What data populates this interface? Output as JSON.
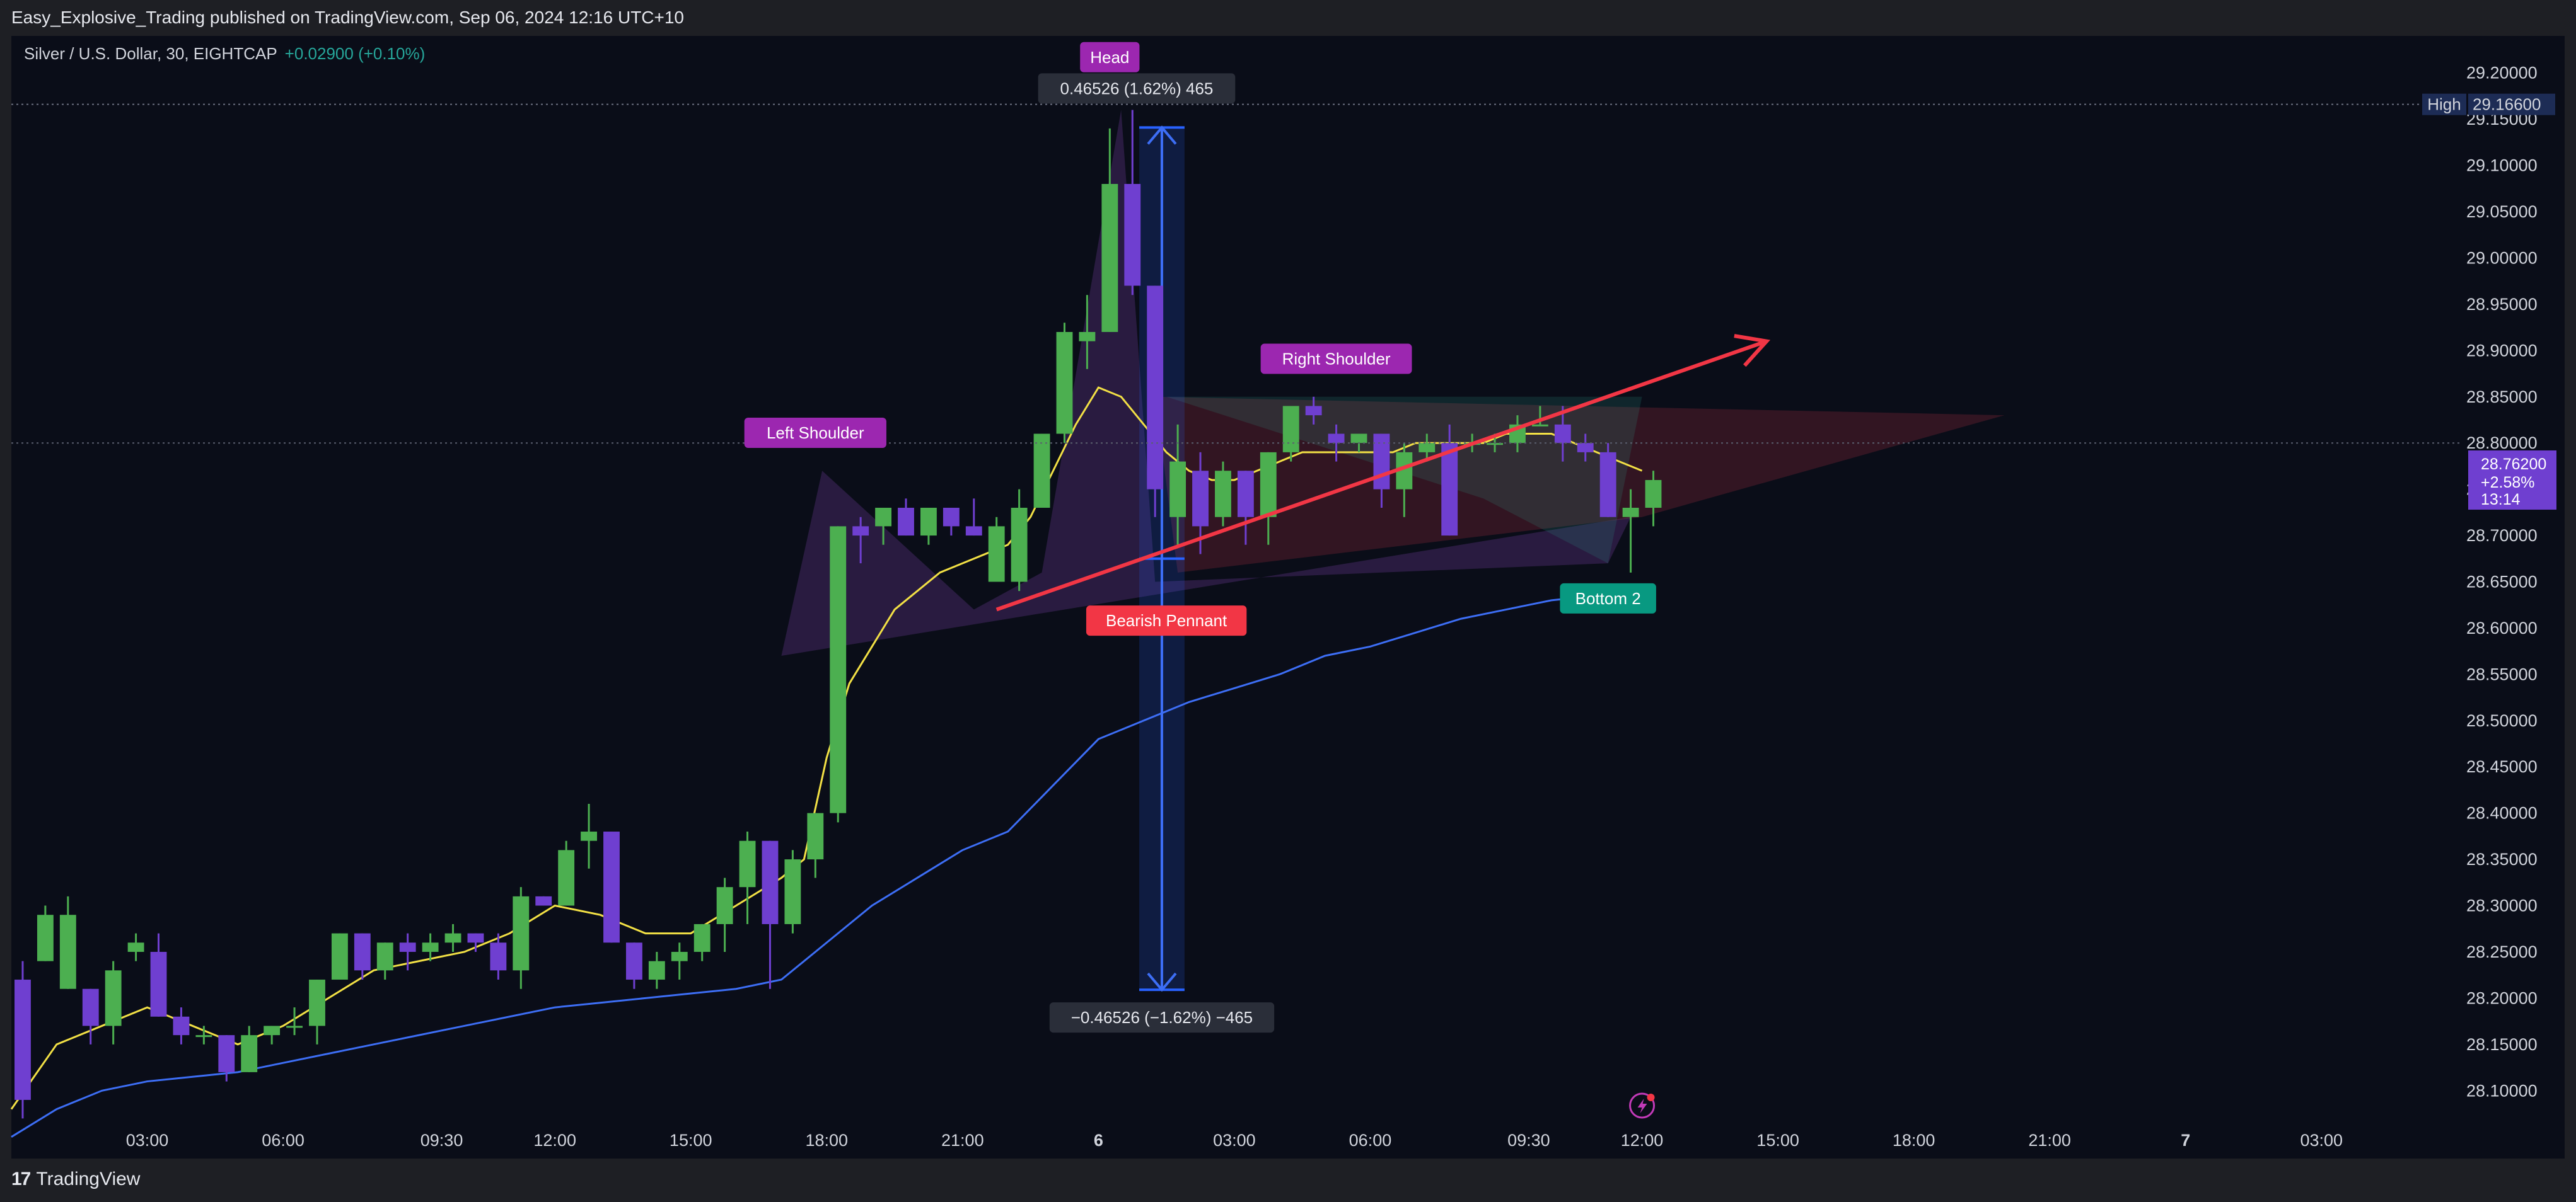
{
  "header": {
    "published_line": "Easy_Explosive_Trading published on TradingView.com, Sep 06, 2024 12:16 UTC+10"
  },
  "footer": {
    "logo_mark": "17",
    "brand": "TradingView"
  },
  "symbol_bar": {
    "symbol": "Silver / U.S. Dollar, 30, EIGHTCAP",
    "change": "+0.02900 (+0.10%)"
  },
  "chart_data": {
    "type": "candlestick",
    "title": "Silver / U.S. Dollar, 30, EIGHTCAP",
    "ylim": [
      28.06,
      29.24
    ],
    "y_tick_labels": [
      "29.20000",
      "29.15000",
      "29.10000",
      "29.05000",
      "29.00000",
      "28.95000",
      "28.90000",
      "28.85000",
      "28.80000",
      "28.75000",
      "28.70000",
      "28.65000",
      "28.60000",
      "28.55000",
      "28.50000",
      "28.45000",
      "28.40000",
      "28.35000",
      "28.30000",
      "28.25000",
      "28.20000",
      "28.15000",
      "28.10000"
    ],
    "y_ticks": [
      29.2,
      29.15,
      29.1,
      29.05,
      29.0,
      28.95,
      28.9,
      28.85,
      28.8,
      28.75,
      28.7,
      28.65,
      28.6,
      28.55,
      28.5,
      28.45,
      28.4,
      28.35,
      28.3,
      28.25,
      28.2,
      28.15,
      28.1
    ],
    "x_ticks": [
      {
        "label": "03:00",
        "t": 6
      },
      {
        "label": "06:00",
        "t": 12
      },
      {
        "label": "09:30",
        "t": 19
      },
      {
        "label": "12:00",
        "t": 24
      },
      {
        "label": "15:00",
        "t": 30
      },
      {
        "label": "18:00",
        "t": 36
      },
      {
        "label": "21:00",
        "t": 42
      },
      {
        "label": "6",
        "t": 48
      },
      {
        "label": "03:00",
        "t": 54
      },
      {
        "label": "06:00",
        "t": 60
      },
      {
        "label": "09:30",
        "t": 67
      },
      {
        "label": "12:00",
        "t": 72
      },
      {
        "label": "15:00",
        "t": 78
      },
      {
        "label": "18:00",
        "t": 84
      },
      {
        "label": "21:00",
        "t": 90
      },
      {
        "label": "7",
        "t": 96
      },
      {
        "label": "03:00",
        "t": 102
      }
    ],
    "x_span": [
      0.0,
      108.2
    ],
    "candles": [
      {
        "t": 0,
        "o": 28.22,
        "h": 28.24,
        "l": 28.07,
        "c": 28.09
      },
      {
        "t": 1,
        "o": 28.24,
        "h": 28.3,
        "l": 28.24,
        "c": 28.29
      },
      {
        "t": 2,
        "o": 28.21,
        "h": 28.31,
        "l": 28.21,
        "c": 28.29
      },
      {
        "t": 3,
        "o": 28.21,
        "h": 28.21,
        "l": 28.15,
        "c": 28.17
      },
      {
        "t": 4,
        "o": 28.17,
        "h": 28.24,
        "l": 28.15,
        "c": 28.23
      },
      {
        "t": 5,
        "o": 28.25,
        "h": 28.27,
        "l": 28.24,
        "c": 28.26
      },
      {
        "t": 6,
        "o": 28.25,
        "h": 28.27,
        "l": 28.18,
        "c": 28.18
      },
      {
        "t": 7,
        "o": 28.18,
        "h": 28.19,
        "l": 28.15,
        "c": 28.16
      },
      {
        "t": 8,
        "o": 28.16,
        "h": 28.17,
        "l": 28.15,
        "c": 28.16
      },
      {
        "t": 9,
        "o": 28.16,
        "h": 28.16,
        "l": 28.11,
        "c": 28.12
      },
      {
        "t": 10,
        "o": 28.12,
        "h": 28.17,
        "l": 28.12,
        "c": 28.16
      },
      {
        "t": 11,
        "o": 28.16,
        "h": 28.17,
        "l": 28.15,
        "c": 28.17
      },
      {
        "t": 12,
        "o": 28.17,
        "h": 28.19,
        "l": 28.16,
        "c": 28.17
      },
      {
        "t": 13,
        "o": 28.17,
        "h": 28.22,
        "l": 28.15,
        "c": 28.22
      },
      {
        "t": 14,
        "o": 28.22,
        "h": 28.27,
        "l": 28.22,
        "c": 28.27
      },
      {
        "t": 15,
        "o": 28.27,
        "h": 28.27,
        "l": 28.22,
        "c": 28.23
      },
      {
        "t": 16,
        "o": 28.23,
        "h": 28.26,
        "l": 28.22,
        "c": 28.26
      },
      {
        "t": 17,
        "o": 28.26,
        "h": 28.27,
        "l": 28.23,
        "c": 28.25
      },
      {
        "t": 18,
        "o": 28.25,
        "h": 28.27,
        "l": 28.24,
        "c": 28.26
      },
      {
        "t": 19,
        "o": 28.26,
        "h": 28.28,
        "l": 28.25,
        "c": 28.27
      },
      {
        "t": 20,
        "o": 28.27,
        "h": 28.27,
        "l": 28.25,
        "c": 28.26
      },
      {
        "t": 21,
        "o": 28.26,
        "h": 28.27,
        "l": 28.22,
        "c": 28.23
      },
      {
        "t": 22,
        "o": 28.23,
        "h": 28.32,
        "l": 28.21,
        "c": 28.31
      },
      {
        "t": 23,
        "o": 28.31,
        "h": 28.31,
        "l": 28.3,
        "c": 28.3
      },
      {
        "t": 24,
        "o": 28.3,
        "h": 28.37,
        "l": 28.3,
        "c": 28.36
      },
      {
        "t": 25,
        "o": 28.37,
        "h": 28.41,
        "l": 28.34,
        "c": 28.38
      },
      {
        "t": 26,
        "o": 28.38,
        "h": 28.38,
        "l": 28.26,
        "c": 28.26
      },
      {
        "t": 27,
        "o": 28.26,
        "h": 28.26,
        "l": 28.21,
        "c": 28.22
      },
      {
        "t": 28,
        "o": 28.22,
        "h": 28.25,
        "l": 28.21,
        "c": 28.24
      },
      {
        "t": 29,
        "o": 28.24,
        "h": 28.26,
        "l": 28.22,
        "c": 28.25
      },
      {
        "t": 30,
        "o": 28.25,
        "h": 28.28,
        "l": 28.24,
        "c": 28.28
      },
      {
        "t": 31,
        "o": 28.28,
        "h": 28.33,
        "l": 28.25,
        "c": 28.32
      },
      {
        "t": 32,
        "o": 28.32,
        "h": 28.38,
        "l": 28.28,
        "c": 28.37
      },
      {
        "t": 33,
        "o": 28.37,
        "h": 28.37,
        "l": 28.21,
        "c": 28.28
      },
      {
        "t": 34,
        "o": 28.28,
        "h": 28.36,
        "l": 28.27,
        "c": 28.35
      },
      {
        "t": 35,
        "o": 28.35,
        "h": 28.4,
        "l": 28.33,
        "c": 28.4
      },
      {
        "t": 36,
        "o": 28.4,
        "h": 28.71,
        "l": 28.39,
        "c": 28.71
      },
      {
        "t": 37,
        "o": 28.71,
        "h": 28.72,
        "l": 28.67,
        "c": 28.7
      },
      {
        "t": 38,
        "o": 28.71,
        "h": 28.73,
        "l": 28.69,
        "c": 28.73
      },
      {
        "t": 39,
        "o": 28.73,
        "h": 28.74,
        "l": 28.7,
        "c": 28.7
      },
      {
        "t": 40,
        "o": 28.7,
        "h": 28.73,
        "l": 28.69,
        "c": 28.73
      },
      {
        "t": 41,
        "o": 28.73,
        "h": 28.73,
        "l": 28.7,
        "c": 28.71
      },
      {
        "t": 42,
        "o": 28.71,
        "h": 28.74,
        "l": 28.7,
        "c": 28.7
      },
      {
        "t": 43,
        "o": 28.65,
        "h": 28.72,
        "l": 28.65,
        "c": 28.71
      },
      {
        "t": 44,
        "o": 28.65,
        "h": 28.75,
        "l": 28.64,
        "c": 28.73
      },
      {
        "t": 45,
        "o": 28.73,
        "h": 28.81,
        "l": 28.73,
        "c": 28.81
      },
      {
        "t": 46,
        "o": 28.81,
        "h": 28.93,
        "l": 28.8,
        "c": 28.92
      },
      {
        "t": 47,
        "o": 28.91,
        "h": 28.96,
        "l": 28.88,
        "c": 28.92
      },
      {
        "t": 48,
        "o": 28.92,
        "h": 29.14,
        "l": 28.92,
        "c": 29.08
      },
      {
        "t": 49,
        "o": 29.08,
        "h": 29.16,
        "l": 28.96,
        "c": 28.97
      },
      {
        "t": 50,
        "o": 28.97,
        "h": 28.97,
        "l": 28.72,
        "c": 28.75
      },
      {
        "t": 51,
        "o": 28.72,
        "h": 28.82,
        "l": 28.69,
        "c": 28.78
      },
      {
        "t": 52,
        "o": 28.77,
        "h": 28.79,
        "l": 28.68,
        "c": 28.71
      },
      {
        "t": 53,
        "o": 28.72,
        "h": 28.78,
        "l": 28.71,
        "c": 28.77
      },
      {
        "t": 54,
        "o": 28.77,
        "h": 28.77,
        "l": 28.69,
        "c": 28.72
      },
      {
        "t": 55,
        "o": 28.72,
        "h": 28.79,
        "l": 28.69,
        "c": 28.79
      },
      {
        "t": 56,
        "o": 28.79,
        "h": 28.84,
        "l": 28.78,
        "c": 28.84
      },
      {
        "t": 57,
        "o": 28.84,
        "h": 28.85,
        "l": 28.82,
        "c": 28.83
      },
      {
        "t": 58,
        "o": 28.81,
        "h": 28.82,
        "l": 28.78,
        "c": 28.8
      },
      {
        "t": 59,
        "o": 28.8,
        "h": 28.81,
        "l": 28.79,
        "c": 28.81
      },
      {
        "t": 60,
        "o": 28.81,
        "h": 28.81,
        "l": 28.73,
        "c": 28.75
      },
      {
        "t": 61,
        "o": 28.75,
        "h": 28.8,
        "l": 28.72,
        "c": 28.79
      },
      {
        "t": 62,
        "o": 28.79,
        "h": 28.81,
        "l": 28.78,
        "c": 28.8
      },
      {
        "t": 63,
        "o": 28.8,
        "h": 28.82,
        "l": 28.7,
        "c": 28.7
      },
      {
        "t": 64,
        "o": 28.8,
        "h": 28.81,
        "l": 28.79,
        "c": 28.8
      },
      {
        "t": 65,
        "o": 28.8,
        "h": 28.81,
        "l": 28.79,
        "c": 28.8
      },
      {
        "t": 66,
        "o": 28.8,
        "h": 28.83,
        "l": 28.79,
        "c": 28.82
      },
      {
        "t": 67,
        "o": 28.82,
        "h": 28.84,
        "l": 28.82,
        "c": 28.82
      },
      {
        "t": 68,
        "o": 28.82,
        "h": 28.84,
        "l": 28.78,
        "c": 28.8
      },
      {
        "t": 69,
        "o": 28.8,
        "h": 28.81,
        "l": 28.78,
        "c": 28.79
      },
      {
        "t": 70,
        "o": 28.79,
        "h": 28.8,
        "l": 28.72,
        "c": 28.72
      },
      {
        "t": 71,
        "o": 28.72,
        "h": 28.75,
        "l": 28.66,
        "c": 28.73
      },
      {
        "t": 72,
        "o": 28.73,
        "h": 28.77,
        "l": 28.71,
        "c": 28.76
      }
    ],
    "ema_fast": {
      "name": "",
      "color": "#f2e045",
      "points": [
        [
          0,
          28.08
        ],
        [
          2,
          28.15
        ],
        [
          4,
          28.17
        ],
        [
          6,
          28.19
        ],
        [
          8,
          28.17
        ],
        [
          10,
          28.15
        ],
        [
          12,
          28.17
        ],
        [
          14,
          28.2
        ],
        [
          16,
          28.23
        ],
        [
          18,
          28.24
        ],
        [
          20,
          28.25
        ],
        [
          22,
          28.27
        ],
        [
          24,
          28.3
        ],
        [
          26,
          28.29
        ],
        [
          28,
          28.27
        ],
        [
          30,
          28.27
        ],
        [
          32,
          28.3
        ],
        [
          34,
          28.33
        ],
        [
          35,
          28.35
        ],
        [
          36,
          28.46
        ],
        [
          37,
          28.54
        ],
        [
          38,
          28.58
        ],
        [
          39,
          28.62
        ],
        [
          40,
          28.64
        ],
        [
          41,
          28.66
        ],
        [
          42,
          28.67
        ],
        [
          43,
          28.68
        ],
        [
          44,
          28.69
        ],
        [
          45,
          28.72
        ],
        [
          46,
          28.77
        ],
        [
          47,
          28.82
        ],
        [
          48,
          28.86
        ],
        [
          49,
          28.85
        ],
        [
          50,
          28.82
        ],
        [
          51,
          28.79
        ],
        [
          52,
          28.77
        ],
        [
          53,
          28.76
        ],
        [
          54,
          28.76
        ],
        [
          55,
          28.77
        ],
        [
          56,
          28.78
        ],
        [
          57,
          28.79
        ],
        [
          58,
          28.79
        ],
        [
          59,
          28.79
        ],
        [
          60,
          28.79
        ],
        [
          61,
          28.79
        ],
        [
          62,
          28.8
        ],
        [
          63,
          28.8
        ],
        [
          64,
          28.8
        ],
        [
          65,
          28.8
        ],
        [
          66,
          28.81
        ],
        [
          67,
          28.81
        ],
        [
          68,
          28.81
        ],
        [
          69,
          28.8
        ],
        [
          70,
          28.79
        ],
        [
          71,
          28.78
        ],
        [
          72,
          28.77
        ]
      ]
    },
    "ema_slow": {
      "name": "",
      "color": "#3d6ef5",
      "points": [
        [
          0,
          28.05
        ],
        [
          2,
          28.08
        ],
        [
          4,
          28.1
        ],
        [
          6,
          28.11
        ],
        [
          8,
          28.115
        ],
        [
          10,
          28.12
        ],
        [
          12,
          28.13
        ],
        [
          14,
          28.14
        ],
        [
          16,
          28.15
        ],
        [
          18,
          28.16
        ],
        [
          20,
          28.17
        ],
        [
          22,
          28.18
        ],
        [
          24,
          28.19
        ],
        [
          26,
          28.195
        ],
        [
          28,
          28.2
        ],
        [
          30,
          28.205
        ],
        [
          32,
          28.21
        ],
        [
          34,
          28.22
        ],
        [
          36,
          28.26
        ],
        [
          38,
          28.3
        ],
        [
          40,
          28.33
        ],
        [
          42,
          28.36
        ],
        [
          44,
          28.38
        ],
        [
          46,
          28.43
        ],
        [
          48,
          28.48
        ],
        [
          50,
          28.5
        ],
        [
          52,
          28.52
        ],
        [
          54,
          28.535
        ],
        [
          56,
          28.55
        ],
        [
          58,
          28.57
        ],
        [
          60,
          28.58
        ],
        [
          62,
          28.595
        ],
        [
          64,
          28.61
        ],
        [
          66,
          28.62
        ],
        [
          68,
          28.63
        ],
        [
          70,
          28.635
        ],
        [
          72,
          28.64
        ]
      ]
    },
    "high_line": {
      "label": "High",
      "value_label": "29.16600",
      "value": 29.166
    },
    "dotted_level": 28.8,
    "last_price": {
      "price": "28.76200",
      "change": "+2.58%",
      "countdown": "13:14",
      "value": 28.762
    },
    "annotations": [
      {
        "text": "Head",
        "t": 48,
        "y": 29.217,
        "color": "#9c27b0"
      },
      {
        "text": "Left Shoulder",
        "t": 35,
        "y": 28.811,
        "color": "#9c27b0"
      },
      {
        "text": "Right Shoulder",
        "t": 58,
        "y": 28.891,
        "color": "#9c27b0"
      },
      {
        "text": "Bearish Pennant",
        "t": 50.5,
        "y": 28.608,
        "color": "#f23645"
      },
      {
        "text": "Bottom 2",
        "t": 70,
        "y": 28.632,
        "color": "#089981"
      }
    ],
    "measure": {
      "t_start": 49.8,
      "t_end": 51.8,
      "upper": 29.141,
      "lower": 28.675,
      "bottom": 28.209,
      "upper_label": "0.46526 (1.62%) 465",
      "lower_label": "−0.46526 (−1.62%) −465"
    },
    "trend_arrow": {
      "t1": 43.5,
      "y1": 28.62,
      "t2": 77.5,
      "y2": 28.91,
      "color": "#f23645"
    },
    "pattern_polygons": [
      {
        "fill": "#7b3fa8",
        "opacity": 0.28,
        "points": [
          [
            34,
            28.57
          ],
          [
            35.8,
            28.77
          ],
          [
            42.5,
            28.62
          ],
          [
            45.5,
            28.66
          ],
          [
            49,
            29.16
          ],
          [
            50.5,
            28.65
          ],
          [
            70.5,
            28.67
          ],
          [
            71.5,
            28.72
          ]
        ]
      },
      {
        "fill": "#c2324a",
        "opacity": 0.22,
        "points": [
          [
            50.5,
            28.85
          ],
          [
            88,
            28.83
          ],
          [
            72,
            28.72
          ],
          [
            51.5,
            28.66
          ]
        ]
      },
      {
        "fill": "#2b9b8a",
        "opacity": 0.18,
        "points": [
          [
            65,
            28.74
          ],
          [
            70.5,
            28.67
          ],
          [
            72,
            28.85
          ],
          [
            51,
            28.85
          ]
        ]
      }
    ],
    "bottom_icon": "lightning-bolt-icon"
  }
}
